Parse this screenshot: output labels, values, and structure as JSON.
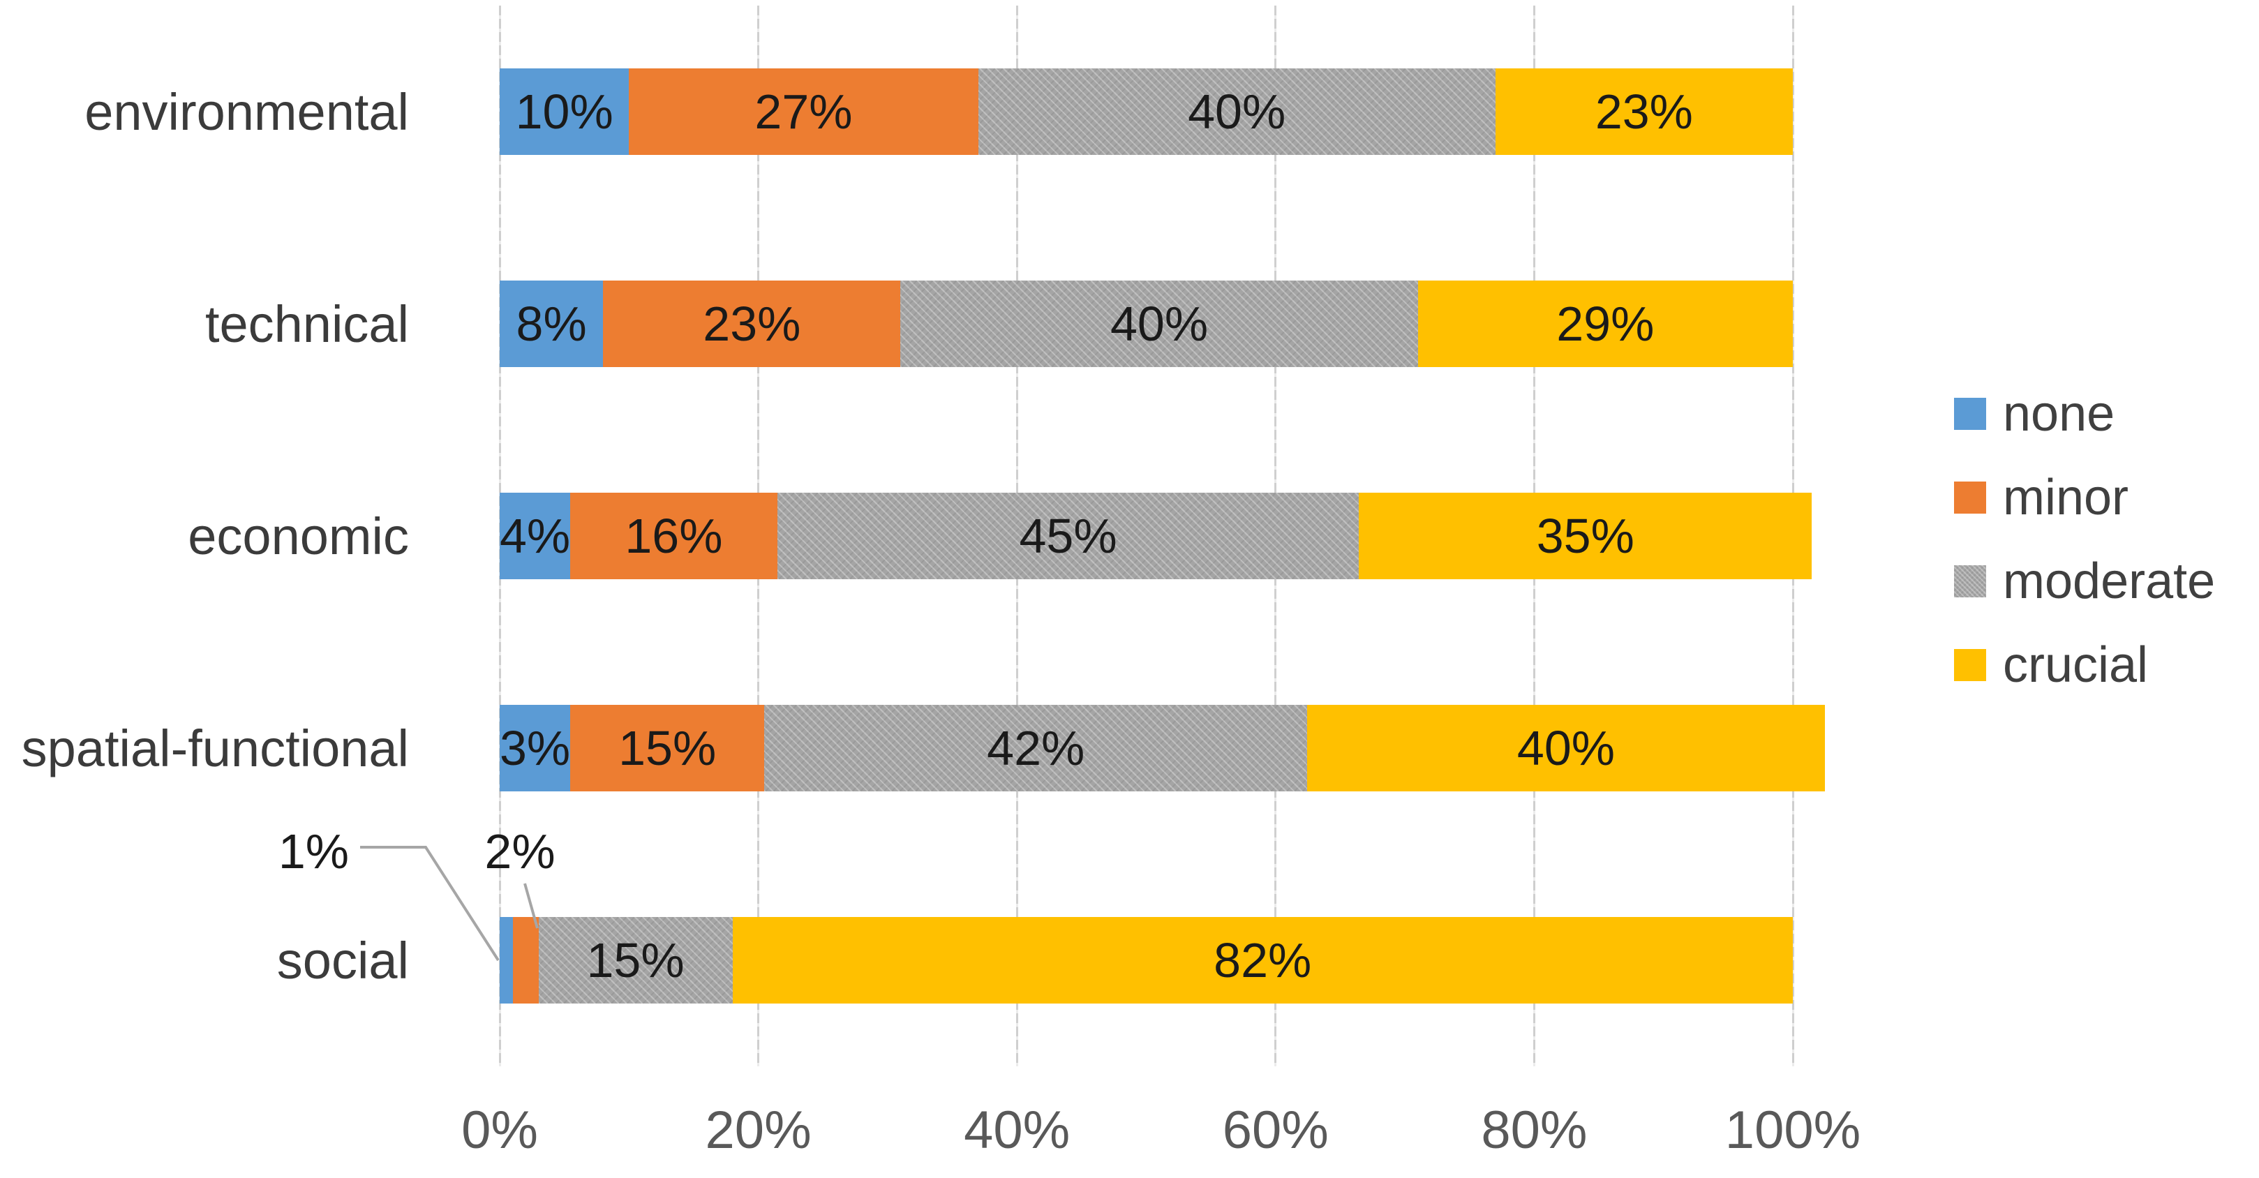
{
  "chart_data": {
    "type": "bar",
    "variant": "horizontal-stacked",
    "title": "",
    "xlabel": "",
    "ylabel": "",
    "categories": [
      "environmental",
      "technical",
      "economic",
      "spatial-functional",
      "social"
    ],
    "series": [
      {
        "name": "none",
        "color": "#5B9BD5",
        "values": [
          10,
          8,
          4,
          3,
          1
        ]
      },
      {
        "name": "minor",
        "color": "#ED7D31",
        "values": [
          27,
          23,
          16,
          15,
          2
        ]
      },
      {
        "name": "moderate",
        "color": "#A5A5A5",
        "values": [
          40,
          40,
          45,
          42,
          15
        ],
        "pattern": "dotted"
      },
      {
        "name": "crucial",
        "color": "#FFC000",
        "values": [
          23,
          29,
          35,
          40,
          82
        ]
      }
    ],
    "data_label_format": "{value}%",
    "x_axis": {
      "ticks": [
        "0%",
        "20%",
        "40%",
        "60%",
        "80%",
        "100%"
      ],
      "range": [
        0,
        100
      ],
      "grid": true
    },
    "legend": {
      "position": "right",
      "entries": [
        "none",
        "minor",
        "moderate",
        "crucial"
      ]
    },
    "callout": {
      "category_index": 4,
      "series_indices": [
        0,
        1
      ],
      "labels": [
        "1%",
        "2%"
      ],
      "note": "social none/minor values shown outside the bar with leader lines"
    },
    "colors": {
      "background": "#FFFFFF",
      "grid_line": "#CFCFCF",
      "tick_text": "#595959",
      "category_text": "#3B3B3B",
      "data_label_text": "#1A1A1A",
      "legend_text": "#404040",
      "leader_line": "#A6A6A6"
    }
  }
}
